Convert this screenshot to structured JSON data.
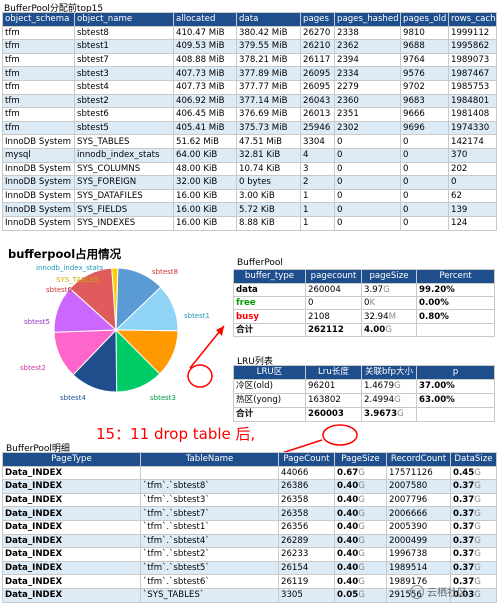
{
  "top15": {
    "title": "BufferPool分配前top15",
    "headers": [
      "object_schema",
      "object_name",
      "allocated",
      "data",
      "pages",
      "pages_hashed",
      "pages_old",
      "rows_cached"
    ],
    "rows": [
      [
        "tfm",
        "sbtest8",
        "410.47 MiB",
        "380.42 MiB",
        "26270",
        "2338",
        "9810",
        "1999112"
      ],
      [
        "tfm",
        "sbtest1",
        "409.53 MiB",
        "379.55 MiB",
        "26210",
        "2362",
        "9688",
        "1995862"
      ],
      [
        "tfm",
        "sbtest7",
        "408.88 MiB",
        "378.21 MiB",
        "26117",
        "2394",
        "9764",
        "1989073"
      ],
      [
        "tfm",
        "sbtest3",
        "407.73 MiB",
        "377.89 MiB",
        "26095",
        "2334",
        "9576",
        "1987467"
      ],
      [
        "tfm",
        "sbtest4",
        "407.73 MiB",
        "377.77 MiB",
        "26095",
        "2279",
        "9702",
        "1985753"
      ],
      [
        "tfm",
        "sbtest2",
        "406.92 MiB",
        "377.14 MiB",
        "26043",
        "2360",
        "9683",
        "1984801"
      ],
      [
        "tfm",
        "sbtest6",
        "406.45 MiB",
        "376.69 MiB",
        "26013",
        "2351",
        "9666",
        "1981408"
      ],
      [
        "tfm",
        "sbtest5",
        "405.41 MiB",
        "375.73 MiB",
        "25946",
        "2302",
        "9696",
        "1974330"
      ],
      [
        "InnoDB System",
        "SYS_TABLES",
        "51.62 MiB",
        "47.51 MiB",
        "3304",
        "0",
        "0",
        "142174"
      ],
      [
        "mysql",
        "innodb_index_stats",
        "64.00 KiB",
        "32.81 KiB",
        "4",
        "0",
        "0",
        "370"
      ],
      [
        "InnoDB System",
        "SYS_COLUMNS",
        "48.00 KiB",
        "10.74 KiB",
        "3",
        "0",
        "0",
        "202"
      ],
      [
        "InnoDB System",
        "SYS_FOREIGN",
        "32.00 KiB",
        "0 bytes",
        "2",
        "0",
        "0",
        "0"
      ],
      [
        "InnoDB System",
        "SYS_DATAFILES",
        "16.00 KiB",
        "3.00 KiB",
        "1",
        "0",
        "0",
        "62"
      ],
      [
        "InnoDB System",
        "SYS_FIELDS",
        "16.00 KiB",
        "5.72 KiB",
        "1",
        "0",
        "0",
        "139"
      ],
      [
        "InnoDB System",
        "SYS_INDEXES",
        "16.00 KiB",
        "8.88 KiB",
        "1",
        "0",
        "0",
        "124"
      ]
    ]
  },
  "pie": {
    "title": "bufferpool占用情况",
    "labels": [
      "innodb_index_stats",
      "SYS_TABLES",
      "sbtest6",
      "sbtest8",
      "sbtest1",
      "sbtest5",
      "sbtest2",
      "sbtest4",
      "sbtest3"
    ],
    "colors": {
      "sbtest8": "#5b9bd5",
      "sbtest1": "#8fd3f5",
      "sbtest7": "#ff9900",
      "sbtest3": "#00cc66",
      "sbtest4": "#1f4e8c",
      "sbtest2": "#ff66cc",
      "sbtest5": "#cc66ff",
      "sbtest6": "#e05c5c",
      "sys_tables": "#ffcc00"
    }
  },
  "bufferpool": {
    "title": "BufferPool",
    "headers": [
      "buffer_type",
      "pagecount",
      "pageSize",
      "Percent"
    ],
    "rows": [
      {
        "type": "data",
        "pagecount": "260004",
        "size": "3.97",
        "unit": "G",
        "percent": "99.20%"
      },
      {
        "type": "free",
        "pagecount": "0",
        "size": "0",
        "unit": "K",
        "percent": "0.00%"
      },
      {
        "type": "busy",
        "pagecount": "2108",
        "size": "32.94",
        "unit": "M",
        "percent": "0.80%"
      },
      {
        "type": "合计",
        "pagecount": "262112",
        "size": "4.00",
        "unit": "G",
        "percent": ""
      }
    ]
  },
  "lru": {
    "title": "LRU列表",
    "headers": [
      "LRU区",
      "Lru长度",
      "关联bfp大小",
      "p"
    ],
    "rows": [
      {
        "zone": "冷区(old)",
        "length": "96201",
        "size": "1.4679",
        "unit": "G",
        "p": "37.00%"
      },
      {
        "zone": "热区(yong)",
        "length": "163802",
        "size": "2.4994",
        "unit": "G",
        "p": "63.00%"
      },
      {
        "zone": "合计",
        "length": "260003",
        "size": "3.9673",
        "unit": "G",
        "p": ""
      }
    ]
  },
  "annotation": "15：11 drop table 后,",
  "detail": {
    "title": "BufferPool明细",
    "headers": [
      "PageType",
      "TableName",
      "PageCount",
      "PageSize",
      "RecordCount",
      "DataSize"
    ],
    "rows": [
      {
        "type": "Data_INDEX",
        "table": "",
        "count": "44066",
        "size": "0.67",
        "unit": "G",
        "records": "17571126",
        "data": "0.45",
        "dunit": "G"
      },
      {
        "type": "Data_INDEX",
        "table": "`tfm`.`sbtest8`",
        "count": "26386",
        "size": "0.40",
        "unit": "G",
        "records": "2007580",
        "data": "0.37",
        "dunit": "G"
      },
      {
        "type": "Data_INDEX",
        "table": "`tfm`.`sbtest3`",
        "count": "26358",
        "size": "0.40",
        "unit": "G",
        "records": "2007796",
        "data": "0.37",
        "dunit": "G"
      },
      {
        "type": "Data_INDEX",
        "table": "`tfm`.`sbtest7`",
        "count": "26358",
        "size": "0.40",
        "unit": "G",
        "records": "2006666",
        "data": "0.37",
        "dunit": "G"
      },
      {
        "type": "Data_INDEX",
        "table": "`tfm`.`sbtest1`",
        "count": "26356",
        "size": "0.40",
        "unit": "G",
        "records": "2005390",
        "data": "0.37",
        "dunit": "G"
      },
      {
        "type": "Data_INDEX",
        "table": "`tfm`.`sbtest4`",
        "count": "26289",
        "size": "0.40",
        "unit": "G",
        "records": "2000499",
        "data": "0.37",
        "dunit": "G"
      },
      {
        "type": "Data_INDEX",
        "table": "`tfm`.`sbtest2`",
        "count": "26233",
        "size": "0.40",
        "unit": "G",
        "records": "1996738",
        "data": "0.37",
        "dunit": "G"
      },
      {
        "type": "Data_INDEX",
        "table": "`tfm`.`sbtest5`",
        "count": "26154",
        "size": "0.40",
        "unit": "G",
        "records": "1989514",
        "data": "0.37",
        "dunit": "G"
      },
      {
        "type": "Data_INDEX",
        "table": "`tfm`.`sbtest6`",
        "count": "26119",
        "size": "0.40",
        "unit": "G",
        "records": "1989176",
        "data": "0.37",
        "dunit": "G"
      },
      {
        "type": "Data_INDEX",
        "table": "`SYS_TABLES`",
        "count": "3305",
        "size": "0.05",
        "unit": "G",
        "records": "291556",
        "data": "0.03",
        "dunit": "G"
      }
    ]
  },
  "watermark": "云栖社区"
}
